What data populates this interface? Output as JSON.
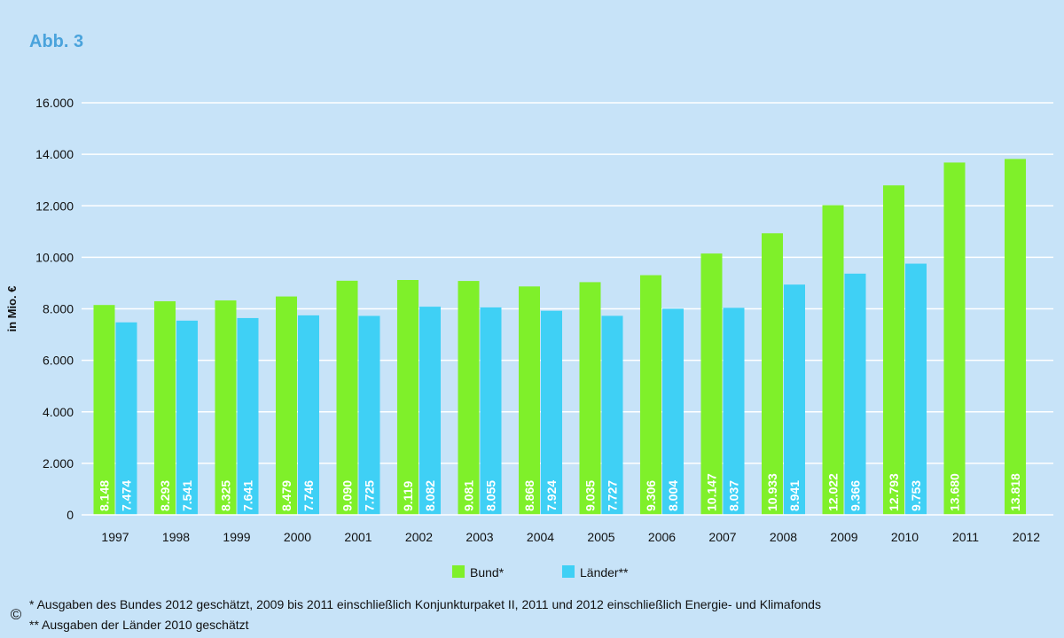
{
  "figure_label": "Abb. 3",
  "chart_data": {
    "type": "bar",
    "ylabel": "in Mio. €",
    "xlabel": "",
    "ylim": [
      0,
      16000
    ],
    "yticks": [
      0,
      2000,
      4000,
      6000,
      8000,
      10000,
      12000,
      14000,
      16000
    ],
    "ytick_labels": [
      "0",
      "2.000",
      "4.000",
      "6.000",
      "8.000",
      "10.000",
      "12.000",
      "14.000",
      "16.000"
    ],
    "grid": true,
    "legend_position": "bottom-center",
    "categories": [
      "1997",
      "1998",
      "1999",
      "2000",
      "2001",
      "2002",
      "2003",
      "2004",
      "2005",
      "2006",
      "2007",
      "2008",
      "2009",
      "2010",
      "2011",
      "2012"
    ],
    "series": [
      {
        "name": "Bund*",
        "color": "#7ff02a",
        "values": [
          8148,
          8293,
          8325,
          8479,
          9090,
          9119,
          9081,
          8868,
          9035,
          9306,
          10147,
          10933,
          12022,
          12793,
          13680,
          13818
        ],
        "value_labels": [
          "8.148",
          "8.293",
          "8.325",
          "8.479",
          "9.090",
          "9.119",
          "9.081",
          "8.868",
          "9.035",
          "9.306",
          "10.147",
          "10.933",
          "12.022",
          "12.793",
          "13.680",
          "13.818"
        ]
      },
      {
        "name": "Länder**",
        "color": "#3fd0f5",
        "values": [
          7474,
          7541,
          7641,
          7746,
          7725,
          8082,
          8055,
          7924,
          7727,
          8004,
          8037,
          8941,
          9366,
          9753,
          null,
          null
        ],
        "value_labels": [
          "7.474",
          "7.541",
          "7.641",
          "7.746",
          "7.725",
          "8.082",
          "8.055",
          "7.924",
          "7.727",
          "8.004",
          "8.037",
          "8.941",
          "9.366",
          "9.753",
          "",
          ""
        ]
      }
    ]
  },
  "footnotes": {
    "note1": "* Ausgaben des Bundes 2012 geschätzt, 2009 bis 2011 einschließlich Konjunkturpaket II, 2011 und 2012 einschließlich Energie- und Klimafonds",
    "note2": "** Ausgaben der Länder 2010 geschätzt"
  },
  "copyright_symbol": "©"
}
